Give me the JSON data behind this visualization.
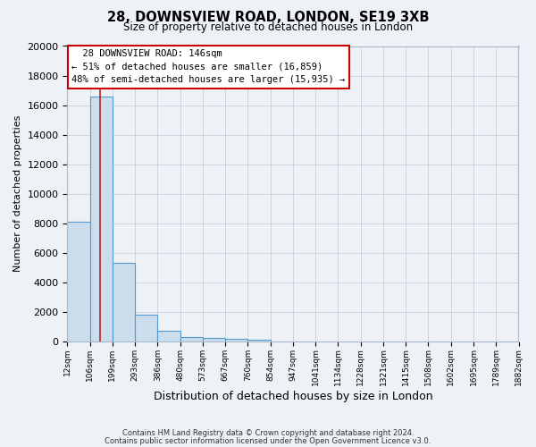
{
  "title": "28, DOWNSVIEW ROAD, LONDON, SE19 3XB",
  "subtitle": "Size of property relative to detached houses in London",
  "xlabel": "Distribution of detached houses by size in London",
  "ylabel": "Number of detached properties",
  "bar_values_full": [
    8100,
    16600,
    5300,
    1800,
    700,
    300,
    250,
    150,
    100,
    0,
    0,
    0,
    0,
    0,
    0,
    0,
    0,
    0,
    0,
    0
  ],
  "bin_labels": [
    "12sqm",
    "106sqm",
    "199sqm",
    "293sqm",
    "386sqm",
    "480sqm",
    "573sqm",
    "667sqm",
    "760sqm",
    "854sqm",
    "947sqm",
    "1041sqm",
    "1134sqm",
    "1228sqm",
    "1321sqm",
    "1415sqm",
    "1508sqm",
    "1602sqm",
    "1695sqm",
    "1789sqm",
    "1882sqm"
  ],
  "ylim": [
    0,
    20000
  ],
  "yticks": [
    0,
    2000,
    4000,
    6000,
    8000,
    10000,
    12000,
    14000,
    16000,
    18000,
    20000
  ],
  "property_label": "28 DOWNSVIEW ROAD: 146sqm",
  "annotation_line1": "← 51% of detached houses are smaller (16,859)",
  "annotation_line2": "48% of semi-detached houses are larger (15,935) →",
  "bar_color": "#ccdded",
  "bar_edge_color": "#5599cc",
  "red_line_bin": 1,
  "footer1": "Contains HM Land Registry data © Crown copyright and database right 2024.",
  "footer2": "Contains public sector information licensed under the Open Government Licence v3.0.",
  "background_color": "#eef2f7",
  "annotation_box_color": "#ffffff",
  "annotation_border_color": "#cc0000"
}
